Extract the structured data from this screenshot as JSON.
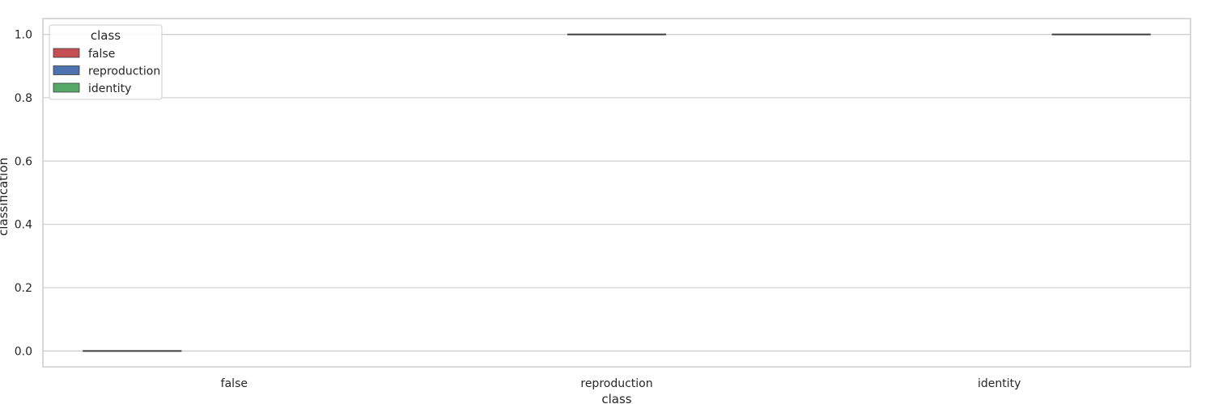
{
  "chart_data": {
    "type": "box",
    "categories": [
      "false",
      "reproduction",
      "identity"
    ],
    "series": [
      {
        "name": "false",
        "color": "#c44e52",
        "values": [
          0.0,
          null,
          null
        ]
      },
      {
        "name": "reproduction",
        "color": "#4c72b0",
        "values": [
          null,
          1.0,
          null
        ]
      },
      {
        "name": "identity",
        "color": "#55a868",
        "values": [
          null,
          null,
          1.0
        ]
      }
    ],
    "xlabel": "class",
    "ylabel": "classification",
    "ylim": [
      -0.05,
      1.05
    ],
    "yticks": [
      0.0,
      0.2,
      0.4,
      0.6,
      0.8,
      1.0
    ],
    "grid": true,
    "legend": {
      "title": "class",
      "placement": "top-left",
      "entries": [
        "false",
        "reproduction",
        "identity"
      ]
    },
    "colors": {
      "grid": "#cccccc",
      "frame": "#cccccc",
      "median_line": "#3d3d3d"
    }
  }
}
